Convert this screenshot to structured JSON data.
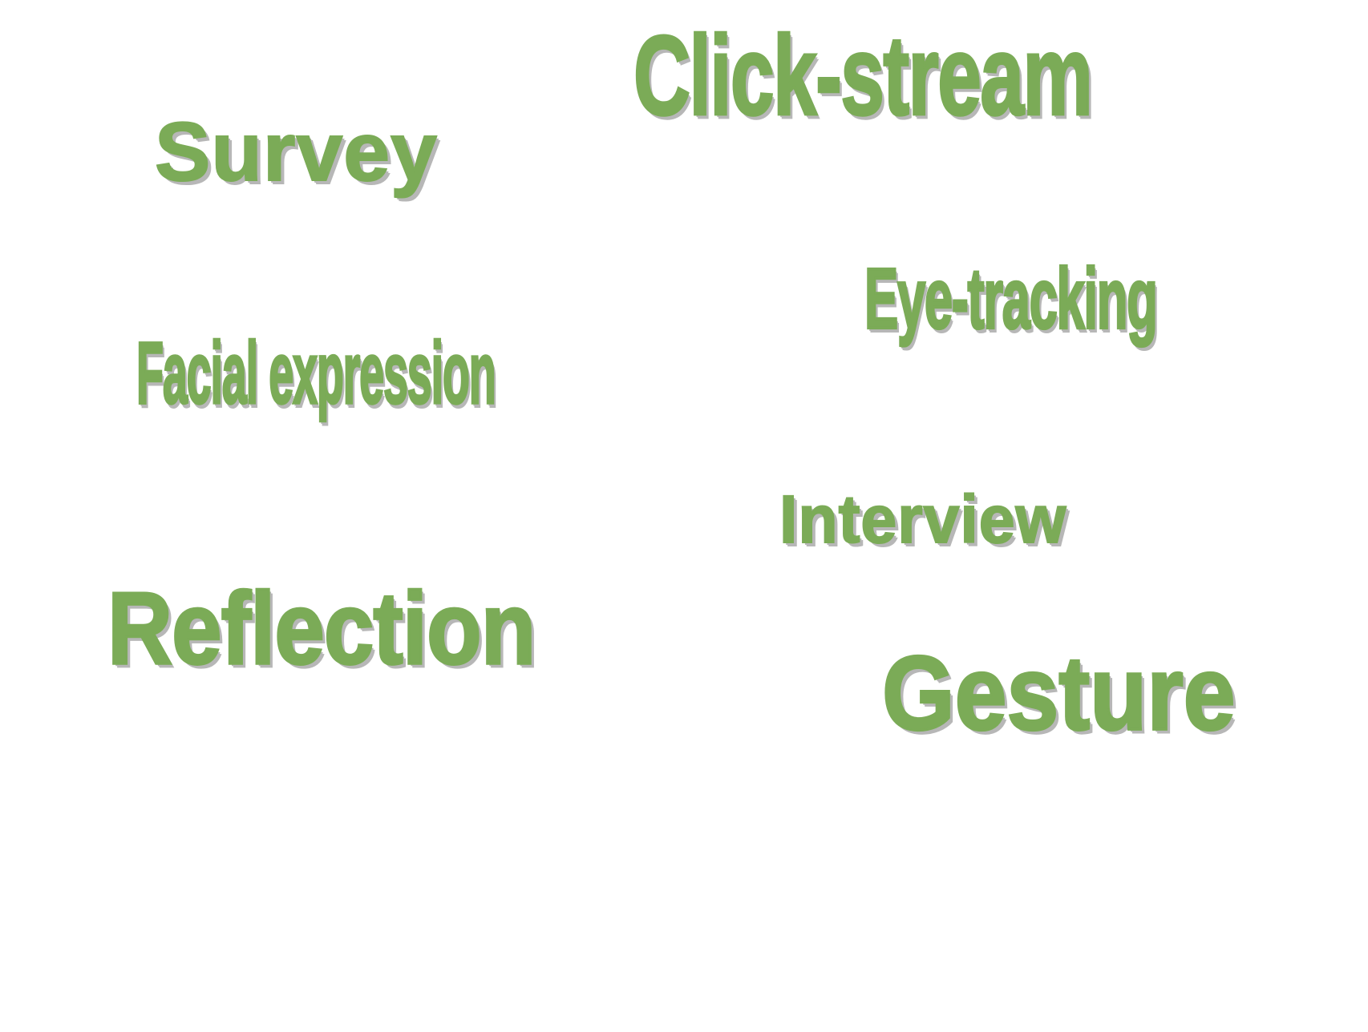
{
  "words": {
    "survey": "Survey",
    "click_stream": "Click-stream",
    "eye_tracking": "Eye-tracking",
    "facial_expression": "Facial expression",
    "interview": "Interview",
    "reflection": "Reflection",
    "gesture": "Gesture"
  },
  "colors": {
    "text": "#7bab57",
    "shadow": "#b7b7b7",
    "background": "#ffffff"
  }
}
